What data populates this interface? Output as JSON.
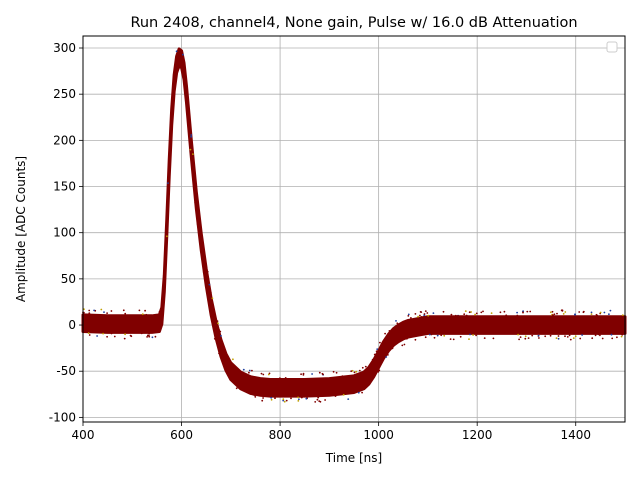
{
  "chart_data": {
    "type": "scatter",
    "title": "Run 2408, channel4, None gain, Pulse w/ 16.0 dB Attenuation",
    "xlabel": "Time [ns]",
    "ylabel": "Amplitude [ADC Counts]",
    "xlim": [
      400,
      1500
    ],
    "ylim": [
      -105,
      313
    ],
    "xticks": [
      400,
      600,
      800,
      1000,
      1200,
      1400
    ],
    "yticks": [
      -100,
      -50,
      0,
      50,
      100,
      150,
      200,
      250,
      300
    ],
    "grid": true,
    "legend": "top-right",
    "series_color": "#800000",
    "x": [
      400,
      450,
      500,
      540,
      555,
      560,
      565,
      570,
      575,
      580,
      585,
      590,
      595,
      600,
      605,
      610,
      615,
      620,
      630,
      640,
      650,
      660,
      670,
      680,
      690,
      700,
      720,
      740,
      760,
      780,
      800,
      850,
      900,
      950,
      970,
      980,
      990,
      1000,
      1010,
      1020,
      1030,
      1040,
      1050,
      1060,
      1080,
      1100,
      1150,
      1200,
      1300,
      1400,
      1500
    ],
    "y": [
      2,
      1,
      1,
      1,
      2,
      10,
      45,
      105,
      170,
      225,
      262,
      282,
      290,
      288,
      275,
      250,
      220,
      190,
      135,
      90,
      52,
      20,
      -5,
      -25,
      -40,
      -50,
      -60,
      -65,
      -67,
      -68,
      -68,
      -68,
      -67,
      -64,
      -60,
      -55,
      -47,
      -37,
      -27,
      -19,
      -13,
      -9,
      -6,
      -4,
      -2,
      0,
      0,
      0,
      0,
      0,
      0
    ],
    "band_half_width": 9
  }
}
